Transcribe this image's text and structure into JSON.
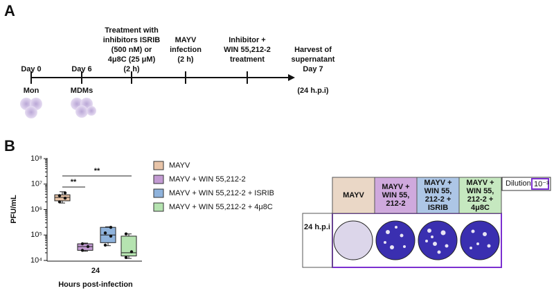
{
  "panel_a": {
    "label": "A",
    "events": [
      {
        "above": [
          "Day 0"
        ],
        "below": [
          "Mon"
        ]
      },
      {
        "above": [
          "Day 6"
        ],
        "below": [
          "MDMs"
        ]
      },
      {
        "above": [
          "Treatment with",
          "inhibitors ISRIB",
          "(500 nM) or",
          "4μ8C (25 μM)",
          "(2 h)"
        ],
        "below": []
      },
      {
        "above": [
          "MAYV",
          "infection",
          "(2 h)"
        ],
        "below": []
      },
      {
        "above": [
          "Inhibitor +",
          "WIN 55,212-2",
          "treatment"
        ],
        "below": []
      },
      {
        "above": [
          "Harvest of",
          "supernatant",
          "Day 7"
        ],
        "below": [
          "(24 h.p.i)"
        ]
      }
    ]
  },
  "panel_b_label": "B",
  "chart_data": {
    "type": "box",
    "y_label": "PFU/mL",
    "x_label": "Hours post-infection",
    "categories": [
      "24"
    ],
    "log_scale": true,
    "ylim": [
      10000,
      100000000
    ],
    "yticks": [
      {
        "value": 10000,
        "label": "10⁴"
      },
      {
        "value": 100000,
        "label": "10⁵"
      },
      {
        "value": 1000000,
        "label": "10⁶"
      },
      {
        "value": 10000000,
        "label": "10⁷"
      },
      {
        "value": 100000000,
        "label": "10⁸"
      }
    ],
    "legend": "right",
    "series": [
      {
        "name": "MAYV",
        "color": "#e8c4a8",
        "min": 1800000,
        "q1": 2200000,
        "median": 3000000,
        "q3": 3800000,
        "max": 5000000,
        "points": [
          2000000,
          2800000,
          3500000,
          4500000
        ]
      },
      {
        "name": "MAYV + WIN 55,212-2",
        "color": "#c39bd3",
        "min": 23000,
        "q1": 25000,
        "median": 35000,
        "q3": 45000,
        "max": 48000,
        "points": [
          25000,
          35000,
          45000
        ]
      },
      {
        "name": "MAYV + WIN 55,212-2 + ISRIB",
        "color": "#8fb3dc",
        "min": 38000,
        "q1": 50000,
        "median": 100000,
        "q3": 200000,
        "max": 210000,
        "points": [
          40000,
          90000,
          120000,
          200000
        ]
      },
      {
        "name": "MAYV + WIN 55,212-2 + 4μ8C",
        "color": "#b5e3b0",
        "min": 12000,
        "q1": 15000,
        "median": 20000,
        "q3": 90000,
        "max": 110000,
        "points": [
          13000,
          22000,
          110000
        ]
      }
    ],
    "significance": [
      {
        "label": "**"
      },
      {
        "label": "**"
      }
    ]
  },
  "plaque_panel": {
    "headers": [
      [
        "MAYV"
      ],
      [
        "MAYV +",
        "WIN 55,",
        "212-2"
      ],
      [
        "MAYV +",
        "WIN 55,",
        "212-2 +",
        "ISRIB"
      ],
      [
        "MAYV +",
        "WIN 55,",
        "212-2 +",
        "4μ8C"
      ]
    ],
    "row_label": "24 h.p.i",
    "dilution_label": "Dilution:",
    "dilution": "10⁻³"
  }
}
